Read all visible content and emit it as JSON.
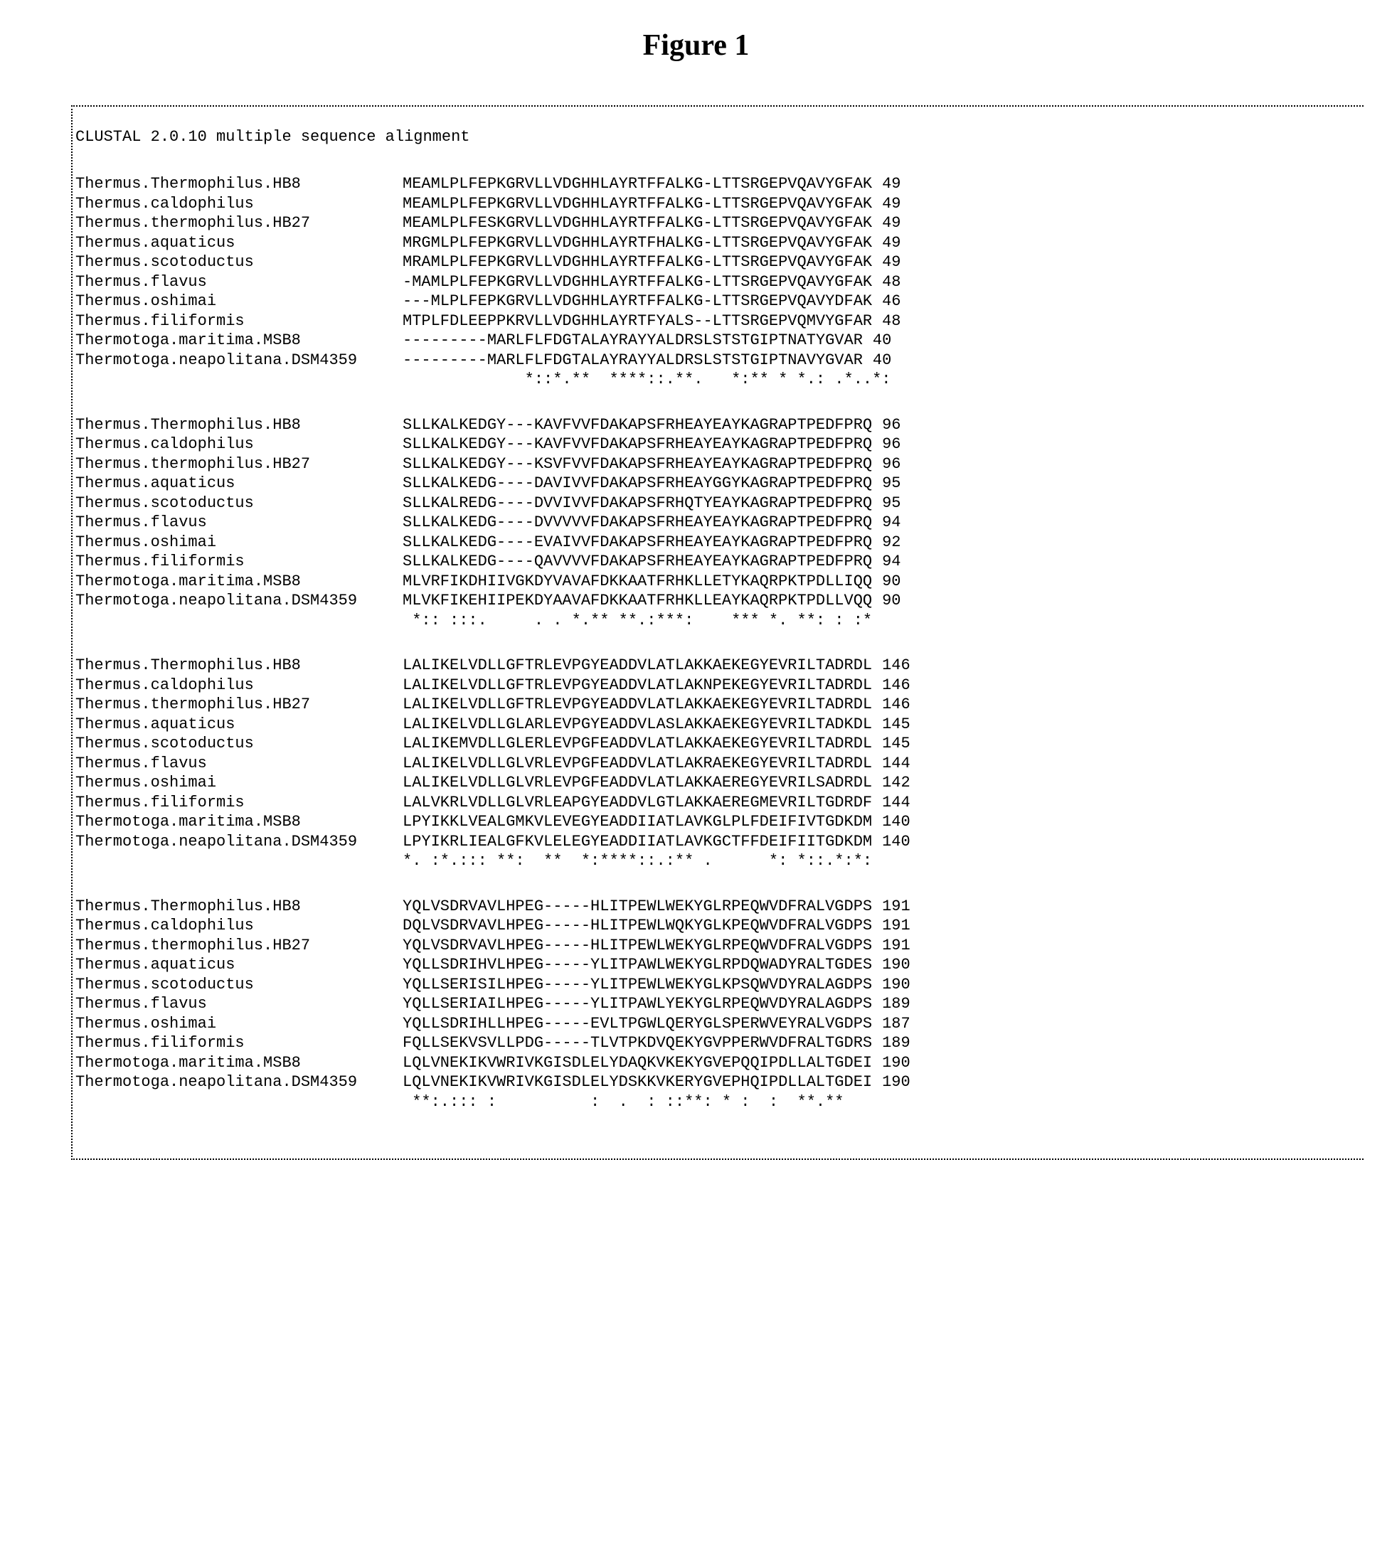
{
  "title": "Figure 1",
  "header": "CLUSTAL 2.0.10 multiple sequence alignment",
  "font": {
    "title_family": "Times New Roman",
    "title_size_pt": 32,
    "title_weight": "bold",
    "mono_family": "Courier New",
    "mono_size_pt": 16,
    "name_col_width_ch": 33
  },
  "colors": {
    "text": "#000000",
    "background": "#ffffff",
    "dotted_border": "#000000"
  },
  "blocks": [
    {
      "rows": [
        {
          "name": "Thermus.Thermophilus.HB8",
          "seq": "MEAMLPLFEPKGRVLLVDGHHLAYRTFFALKG-LTTSRGEPVQAVYGFAK",
          "pos": "49"
        },
        {
          "name": "Thermus.caldophilus",
          "seq": "MEAMLPLFEPKGRVLLVDGHHLAYRTFFALKG-LTTSRGEPVQAVYGFAK",
          "pos": "49"
        },
        {
          "name": "Thermus.thermophilus.HB27",
          "seq": "MEAMLPLFESKGRVLLVDGHHLAYRTFFALKG-LTTSRGEPVQAVYGFAK",
          "pos": "49"
        },
        {
          "name": "Thermus.aquaticus",
          "seq": "MRGMLPLFEPKGRVLLVDGHHLAYRTFHALKG-LTTSRGEPVQAVYGFAK",
          "pos": "49"
        },
        {
          "name": "Thermus.scotoductus",
          "seq": "MRAMLPLFEPKGRVLLVDGHHLAYRTFFALKG-LTTSRGEPVQAVYGFAK",
          "pos": "49"
        },
        {
          "name": "Thermus.flavus",
          "seq": "-MAMLPLFEPKGRVLLVDGHHLAYRTFFALKG-LTTSRGEPVQAVYGFAK",
          "pos": "48"
        },
        {
          "name": "Thermus.oshimai",
          "seq": "---MLPLFEPKGRVLLVDGHHLAYRTFFALKG-LTTSRGEPVQAVYDFAK",
          "pos": "46"
        },
        {
          "name": "Thermus.filiformis",
          "seq": "MTPLFDLEEPPKRVLLVDGHHLAYRTFYALS--LTTSRGEPVQMVYGFAR",
          "pos": "48"
        },
        {
          "name": "Thermotoga.maritima.MSB8",
          "seq": "---------MARLFLFDGTALAYRAYYALDRSLSTSTGIPTNATYGVAR",
          "pos": "40"
        },
        {
          "name": "Thermotoga.neapolitana.DSM4359",
          "seq": "---------MARLFLFDGTALAYRAYYALDRSLSTSTGIPTNAVYGVAR",
          "pos": "40"
        }
      ],
      "consensus": "             *::*.**  ****::.**.   *:** * *.: .*..*:"
    },
    {
      "rows": [
        {
          "name": "Thermus.Thermophilus.HB8",
          "seq": "SLLKALKEDGY---KAVFVVFDAKAPSFRHEAYEAYKAGRAPTPEDFPRQ",
          "pos": "96"
        },
        {
          "name": "Thermus.caldophilus",
          "seq": "SLLKALKEDGY---KAVFVVFDAKAPSFRHEAYEAYKAGRAPTPEDFPRQ",
          "pos": "96"
        },
        {
          "name": "Thermus.thermophilus.HB27",
          "seq": "SLLKALKEDGY---KSVFVVFDAKAPSFRHEAYEAYKAGRAPTPEDFPRQ",
          "pos": "96"
        },
        {
          "name": "Thermus.aquaticus",
          "seq": "SLLKALKEDG----DAVIVVFDAKAPSFRHEAYGGYKAGRAPTPEDFPRQ",
          "pos": "95"
        },
        {
          "name": "Thermus.scotoductus",
          "seq": "SLLKALREDG----DVVIVVFDAKAPSFRHQTYEAYKAGRAPTPEDFPRQ",
          "pos": "95"
        },
        {
          "name": "Thermus.flavus",
          "seq": "SLLKALKEDG----DVVVVVFDAKAPSFRHEAYEAYKAGRAPTPEDFPRQ",
          "pos": "94"
        },
        {
          "name": "Thermus.oshimai",
          "seq": "SLLKALKEDG----EVAIVVFDAKAPSFRHEAYEAYKAGRAPTPEDFPRQ",
          "pos": "92"
        },
        {
          "name": "Thermus.filiformis",
          "seq": "SLLKALKEDG----QAVVVVFDAKAPSFRHEAYEAYKAGRAPTPEDFPRQ",
          "pos": "94"
        },
        {
          "name": "Thermotoga.maritima.MSB8",
          "seq": "MLVRFIKDHIIVGKDYVAVAFDKKAATFRHKLLETYKAQRPKTPDLLIQQ",
          "pos": "90"
        },
        {
          "name": "Thermotoga.neapolitana.DSM4359",
          "seq": "MLVKFIKEHIIPEKDYAAVAFDKKAATFRHKLLEAYKAQRPKTPDLLVQQ",
          "pos": "90"
        }
      ],
      "consensus": " *:: :::.     . . *.** **.:***:    *** *. **: : :*"
    },
    {
      "rows": [
        {
          "name": "Thermus.Thermophilus.HB8",
          "seq": "LALIKELVDLLGFTRLEVPGYEADDVLATLAKKAEKEGYEVRILTADRDL",
          "pos": "146"
        },
        {
          "name": "Thermus.caldophilus",
          "seq": "LALIKELVDLLGFTRLEVPGYEADDVLATLAKNPEKEGYEVRILTADRDL",
          "pos": "146"
        },
        {
          "name": "Thermus.thermophilus.HB27",
          "seq": "LALIKELVDLLGFTRLEVPGYEADDVLATLAKKAEKEGYEVRILTADRDL",
          "pos": "146"
        },
        {
          "name": "Thermus.aquaticus",
          "seq": "LALIKELVDLLGLARLEVPGYEADDVLASLAKKAEKEGYEVRILTADKDL",
          "pos": "145"
        },
        {
          "name": "Thermus.scotoductus",
          "seq": "LALIKEMVDLLGLERLEVPGFEADDVLATLAKKAEKEGYEVRILTADRDL",
          "pos": "145"
        },
        {
          "name": "Thermus.flavus",
          "seq": "LALIKELVDLLGLVRLEVPGFEADDVLATLAKRAEKEGYEVRILTADRDL",
          "pos": "144"
        },
        {
          "name": "Thermus.oshimai",
          "seq": "LALIKELVDLLGLVRLEVPGFEADDVLATLAKKAEREGYEVRILSADRDL",
          "pos": "142"
        },
        {
          "name": "Thermus.filiformis",
          "seq": "LALVKRLVDLLGLVRLEAPGYEADDVLGTLAKKAEREGMEVRILTGDRDF",
          "pos": "144"
        },
        {
          "name": "Thermotoga.maritima.MSB8",
          "seq": "LPYIKKLVEALGMKVLEVEGYEADDIIATLAVKGLPLFDEIFIVTGDKDM",
          "pos": "140"
        },
        {
          "name": "Thermotoga.neapolitana.DSM4359",
          "seq": "LPYIKRLIEALGFKVLELEGYEADDIIATLAVKGCTFFDEIFIITGDKDM",
          "pos": "140"
        }
      ],
      "consensus": "*. :*.::: **:  **  *:****::.:** .      *: *::.*:*:"
    },
    {
      "rows": [
        {
          "name": "Thermus.Thermophilus.HB8",
          "seq": "YQLVSDRVAVLHPEG-----HLITPEWLWEKYGLRPEQWVDFRALVGDPS",
          "pos": "191"
        },
        {
          "name": "Thermus.caldophilus",
          "seq": "DQLVSDRVAVLHPEG-----HLITPEWLWQKYGLKPEQWVDFRALVGDPS",
          "pos": "191"
        },
        {
          "name": "Thermus.thermophilus.HB27",
          "seq": "YQLVSDRVAVLHPEG-----HLITPEWLWEKYGLRPEQWVDFRALVGDPS",
          "pos": "191"
        },
        {
          "name": "Thermus.aquaticus",
          "seq": "YQLLSDRIHVLHPEG-----YLITPAWLWEKYGLRPDQWADYRALTGDES",
          "pos": "190"
        },
        {
          "name": "Thermus.scotoductus",
          "seq": "YQLLSERISILHPEG-----YLITPEWLWEKYGLKPSQWVDYRALAGDPS",
          "pos": "190"
        },
        {
          "name": "Thermus.flavus",
          "seq": "YQLLSERIAILHPEG-----YLITPAWLYEKYGLRPEQWVDYRALAGDPS",
          "pos": "189"
        },
        {
          "name": "Thermus.oshimai",
          "seq": "YQLLSDRIHLLHPEG-----EVLTPGWLQERYGLSPERWVEYRALVGDPS",
          "pos": "187"
        },
        {
          "name": "Thermus.filiformis",
          "seq": "FQLLSEKVSVLLPDG-----TLVTPKDVQEKYGVPPERWVDFRALTGDRS",
          "pos": "189"
        },
        {
          "name": "Thermotoga.maritima.MSB8",
          "seq": "LQLVNEKIKVWRIVKGISDLELYDAQKVKEKYGVEPQQIPDLLALTGDEI",
          "pos": "190"
        },
        {
          "name": "Thermotoga.neapolitana.DSM4359",
          "seq": "LQLVNEKIKVWRIVKGISDLELYDSKKVKERYGVEPHQIPDLLALTGDEI",
          "pos": "190"
        }
      ],
      "consensus": " **:.::: :          :  .  : ::**: * :  :  **.**  "
    }
  ]
}
